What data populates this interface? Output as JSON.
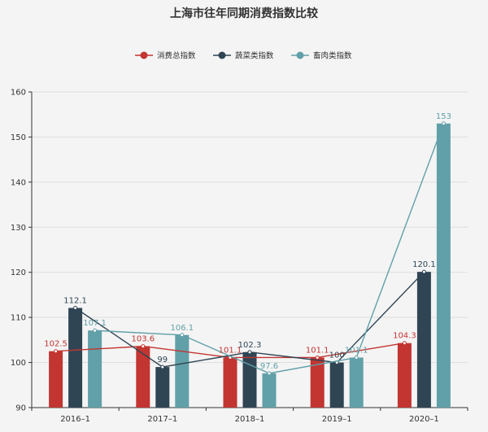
{
  "chart_data": {
    "type": "bar",
    "title": "上海市往年同期消费指数比较",
    "categories": [
      "2016–1",
      "2017–1",
      "2018–1",
      "2019–1",
      "2020–1"
    ],
    "ylim": [
      90,
      160
    ],
    "yticks": [
      90,
      100,
      110,
      120,
      130,
      140,
      150,
      160
    ],
    "grid": true,
    "legend_position": "top-center",
    "series": [
      {
        "name": "消费总指数",
        "color": "#c23531",
        "values": [
          102.5,
          103.6,
          101.1,
          101.1,
          104.3
        ]
      },
      {
        "name": "蔬菜类指数",
        "color": "#2f4554",
        "values": [
          112.1,
          99,
          102.3,
          100,
          120.1
        ]
      },
      {
        "name": "畜肉类指数",
        "color": "#61a0a8",
        "values": [
          107.1,
          106.1,
          97.6,
          101.1,
          153
        ]
      }
    ]
  }
}
